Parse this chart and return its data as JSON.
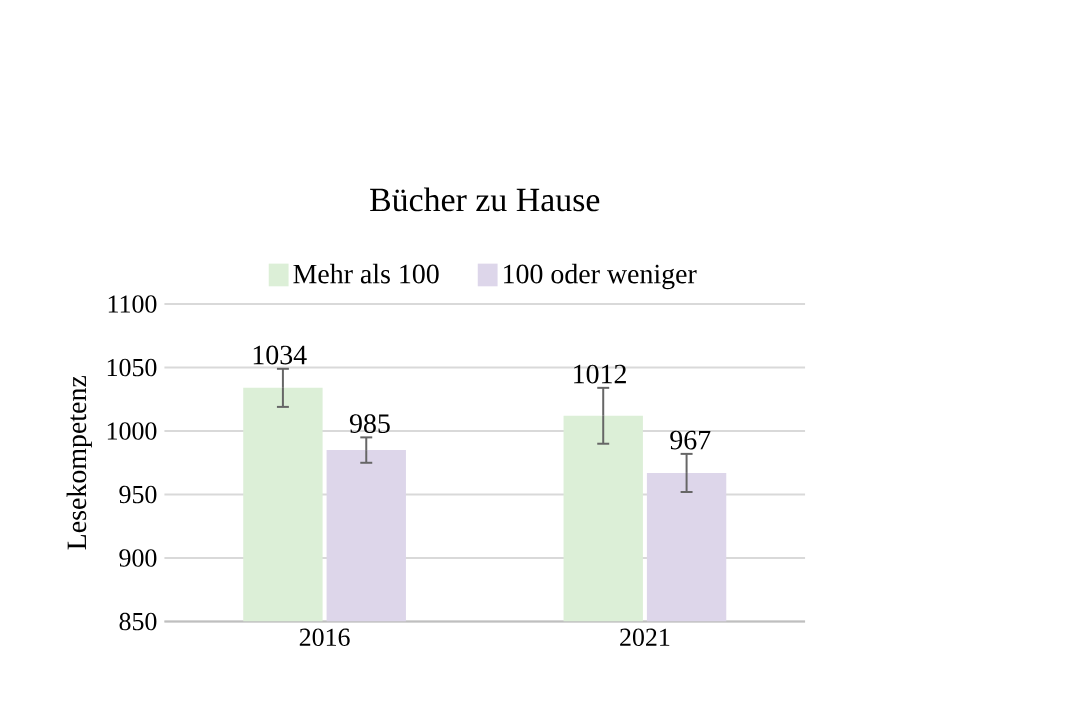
{
  "chart_data": {
    "type": "bar",
    "title": "Bücher zu Hause",
    "ylabel": "Lesekompetenz",
    "categories": [
      "2016",
      "2021"
    ],
    "series": [
      {
        "name": "Mehr als 100",
        "color": "#dcefd7",
        "values": [
          1034,
          1012
        ],
        "errors": [
          15,
          22
        ]
      },
      {
        "name": "100 oder weniger",
        "color": "#ddd6ea",
        "values": [
          985,
          967
        ],
        "errors": [
          10,
          15
        ]
      }
    ],
    "ylim": [
      850,
      1100
    ],
    "yticks": [
      850,
      900,
      950,
      1000,
      1050,
      1100
    ],
    "grid": "y",
    "legend": "top",
    "data_labels": true
  }
}
